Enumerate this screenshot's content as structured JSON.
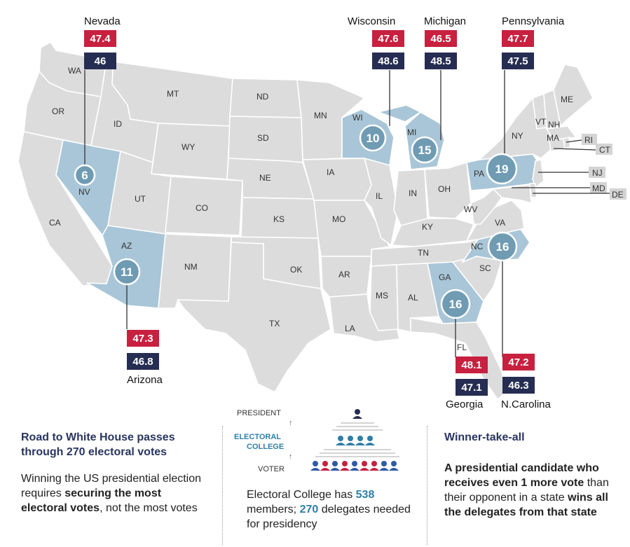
{
  "map": {
    "states": [
      "WA",
      "OR",
      "CA",
      "ID",
      "MT",
      "WY",
      "UT",
      "CO",
      "AZ",
      "NM",
      "ND",
      "SD",
      "NE",
      "KS",
      "OK",
      "TX",
      "MN",
      "IA",
      "MO",
      "AR",
      "LA",
      "WI",
      "IL",
      "MI",
      "IN",
      "OH",
      "KY",
      "TN",
      "MS",
      "AL",
      "GA",
      "FL",
      "SC",
      "NC",
      "VA",
      "WV",
      "PA",
      "NY",
      "VT",
      "NH",
      "ME",
      "MA",
      "RI",
      "CT",
      "NJ",
      "DE",
      "MD",
      "NV"
    ],
    "swing_states": [
      {
        "name": "Nevada",
        "abbr": "NV",
        "electoral_votes": "6",
        "red": "47.4",
        "blue": "46"
      },
      {
        "name": "Wisconsin",
        "abbr": "WI",
        "electoral_votes": "10",
        "red": "47.6",
        "blue": "48.6"
      },
      {
        "name": "Michigan",
        "abbr": "MI",
        "electoral_votes": "15",
        "red": "46.5",
        "blue": "48.5"
      },
      {
        "name": "Pennsylvania",
        "abbr": "PA",
        "electoral_votes": "19",
        "red": "47.7",
        "blue": "47.5"
      },
      {
        "name": "Arizona",
        "abbr": "AZ",
        "electoral_votes": "11",
        "red": "47.3",
        "blue": "46.8"
      },
      {
        "name": "Georgia",
        "abbr": "GA",
        "electoral_votes": "16",
        "red": "48.1",
        "blue": "47.1"
      },
      {
        "name": "N.Carolina",
        "abbr": "NC",
        "electoral_votes": "16",
        "red": "47.2",
        "blue": "46.3"
      }
    ],
    "colors": {
      "state": "#dcdcdc",
      "swing": "#a9c6d8",
      "circle": "#6f9bb3",
      "red": "#c8203f",
      "blue": "#262d52"
    }
  },
  "left_panel": {
    "title": "Road to White House passes through 270 electoral votes",
    "body_1": "Winning the US presidential election requires ",
    "body_bold": "securing the most electoral votes",
    "body_2": ", not the most votes"
  },
  "middle_panel": {
    "label_president": "PRESIDENT",
    "label_ec_1": "ELECTORAL",
    "label_ec_2": "COLLEGE",
    "label_voter": "VOTER",
    "text_1": "Electoral College has ",
    "num_members": "538",
    "text_2": " members; ",
    "num_needed": "270",
    "text_3": " delegates needed for presidency"
  },
  "right_panel": {
    "title": "Winner-take-all",
    "t1": "A presidential candidate who receives even 1 more ",
    "t2": "vote",
    "t3": " than their opponent in a state ",
    "t4": "wins all the delegates from that state"
  }
}
